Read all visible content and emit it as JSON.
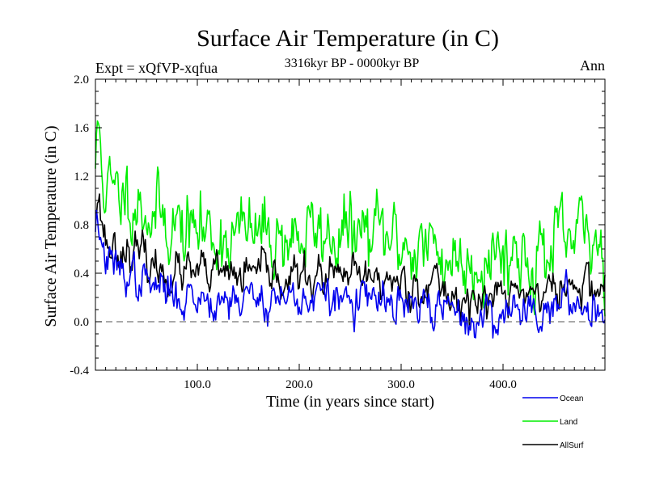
{
  "chart_data": {
    "type": "line",
    "title": "Surface Air Temperature (in C)",
    "subtitle": "3316kyr BP - 0000kyr BP",
    "left_label": "Expt = xQfVP-xqfua",
    "right_label": "Ann",
    "xlabel": "Time (in years since start)",
    "ylabel": "Surface Air Temperature (in C)",
    "xlim": [
      0,
      500
    ],
    "ylim": [
      -0.4,
      2.0
    ],
    "x_ticks": [
      100,
      200,
      300,
      400
    ],
    "x_tick_labels": [
      "100.0",
      "200.0",
      "300.0",
      "400.0"
    ],
    "y_ticks": [
      -0.4,
      0.0,
      0.4,
      0.8,
      1.2,
      1.6,
      2.0
    ],
    "y_tick_labels": [
      "-0.4",
      "0.0",
      "0.4",
      "0.8",
      "1.2",
      "1.6",
      "2.0"
    ],
    "zero_line": 0.0,
    "series": [
      {
        "name": "Land",
        "color": "#00ee00",
        "anchor_x": [
          0,
          3,
          6,
          10,
          15,
          20,
          25,
          30,
          40,
          50,
          60,
          70,
          80,
          90,
          100,
          115,
          130,
          150,
          170,
          200,
          230,
          260,
          280,
          300,
          320,
          340,
          360,
          380,
          400,
          420,
          440,
          460,
          480,
          490,
          500
        ],
        "anchor_y": [
          1.3,
          1.6,
          1.35,
          1.1,
          1.05,
          1.0,
          1.05,
          1.1,
          1.0,
          0.95,
          0.85,
          0.85,
          0.8,
          0.75,
          0.75,
          0.72,
          0.72,
          0.72,
          0.72,
          0.7,
          0.72,
          0.72,
          0.7,
          0.65,
          0.62,
          0.55,
          0.5,
          0.55,
          0.6,
          0.55,
          0.55,
          0.62,
          0.68,
          0.7,
          0.5
        ],
        "noise": 0.17,
        "seed": 11
      },
      {
        "name": "AllSurf",
        "color": "#000000",
        "anchor_x": [
          0,
          3,
          6,
          10,
          15,
          20,
          30,
          40,
          50,
          60,
          80,
          100,
          130,
          160,
          200,
          240,
          270,
          300,
          330,
          350,
          370,
          390,
          420,
          450,
          480,
          500
        ],
        "anchor_y": [
          0.98,
          1.05,
          0.85,
          0.68,
          0.62,
          0.6,
          0.62,
          0.55,
          0.5,
          0.42,
          0.4,
          0.38,
          0.38,
          0.38,
          0.36,
          0.36,
          0.35,
          0.33,
          0.3,
          0.22,
          0.15,
          0.2,
          0.25,
          0.25,
          0.3,
          0.28
        ],
        "noise": 0.09,
        "seed": 23
      },
      {
        "name": "Ocean",
        "color": "#0000ee",
        "anchor_x": [
          0,
          3,
          6,
          10,
          15,
          20,
          30,
          40,
          60,
          80,
          100,
          130,
          160,
          200,
          240,
          270,
          300,
          330,
          350,
          370,
          390,
          420,
          450,
          480,
          500
        ],
        "anchor_y": [
          0.82,
          0.85,
          0.6,
          0.52,
          0.45,
          0.42,
          0.42,
          0.35,
          0.28,
          0.22,
          0.2,
          0.2,
          0.2,
          0.2,
          0.18,
          0.17,
          0.12,
          0.12,
          0.08,
          0.0,
          0.05,
          0.12,
          0.12,
          0.15,
          0.12
        ],
        "noise": 0.09,
        "seed": 37
      }
    ],
    "legend": {
      "position": "bottom-right",
      "entries": [
        {
          "label": "Ocean",
          "color": "#0000ee"
        },
        {
          "label": "Land",
          "color": "#00ee00"
        },
        {
          "label": "AllSurf",
          "color": "#000000"
        }
      ]
    }
  }
}
